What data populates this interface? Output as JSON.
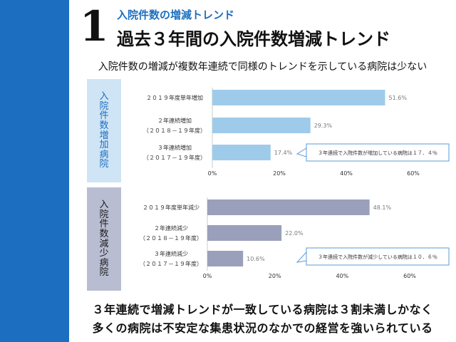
{
  "header": {
    "number": "1",
    "subtitle": "入院件数の増減トレンド",
    "title": "過去３年間の入院件数増減トレンド",
    "lead": "入院件数の増減が複数年連続で同様のトレンドを示している病院は少ない"
  },
  "colors": {
    "sidebar": "#1c6fc0",
    "increase_bar": "#9fcbea",
    "decrease_bar": "#9aa0bb",
    "callout_border": "#5b9bd5",
    "label_text": "#7a7a7a"
  },
  "chart_data": [
    {
      "type": "bar",
      "orientation": "horizontal",
      "panel_label": "入院件数増加病院",
      "categories": [
        [
          "２０１９年度単年増加"
        ],
        [
          "２年連続増加",
          "（２０１８－１９年度）"
        ],
        [
          "３年連続増加",
          "（２０１７－１９年度）"
        ]
      ],
      "values": [
        51.6,
        29.3,
        17.4
      ],
      "value_labels": [
        "51.6%",
        "29.3%",
        "17.4%"
      ],
      "xlim": [
        0,
        60
      ],
      "ticks": [
        "0%",
        "20%",
        "40%",
        "60%"
      ],
      "annotation": "３年連続で入院件数が増加している病院は１７．４％"
    },
    {
      "type": "bar",
      "orientation": "horizontal",
      "panel_label": "入院件数減少病院",
      "categories": [
        [
          "２０１９年度単年減少"
        ],
        [
          "２年連続減少",
          "（２０１８－１９年度）"
        ],
        [
          "３年連続減少",
          "（２０１７－１９年度）"
        ]
      ],
      "values": [
        48.1,
        22.0,
        10.6
      ],
      "value_labels": [
        "48.1%",
        "22.0%",
        "10.6%"
      ],
      "xlim": [
        0,
        60
      ],
      "ticks": [
        "0%",
        "20%",
        "40%",
        "60%"
      ],
      "annotation": "３年連続で入院件数が減少している病院は１０．６％"
    }
  ],
  "footer": {
    "line1": "３年連続で増減トレンドが一致している病院は３割未満しかなく",
    "line2": "多くの病院は不安定な集患状況のなかでの経営を強いられている"
  }
}
